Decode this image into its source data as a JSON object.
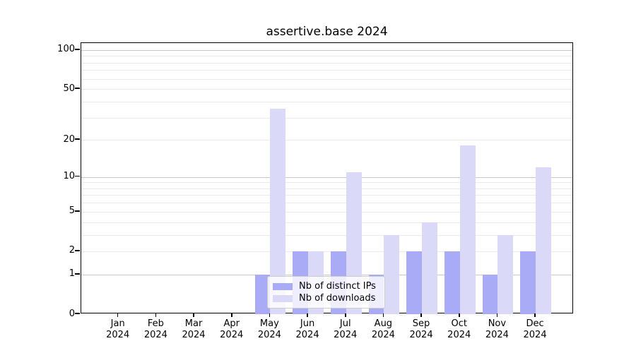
{
  "title": "assertive.base 2024",
  "chart_data": {
    "type": "bar",
    "title": "assertive.base 2024",
    "categories": [
      "Jan 2024",
      "Feb 2024",
      "Mar 2024",
      "Apr 2024",
      "May 2024",
      "Jun 2024",
      "Jul 2024",
      "Aug 2024",
      "Sep 2024",
      "Oct 2024",
      "Nov 2024",
      "Dec 2024"
    ],
    "series": [
      {
        "name": "Nb of distinct IPs",
        "color": "#aaabf7",
        "values": [
          0,
          0,
          0,
          0,
          1,
          2,
          2,
          1,
          2,
          2,
          1,
          2
        ]
      },
      {
        "name": "Nb of downloads",
        "color": "#dadaf8",
        "values": [
          0,
          0,
          0,
          0,
          35,
          2,
          11,
          3,
          4,
          18,
          3,
          12
        ]
      }
    ],
    "xlabel": "",
    "ylabel": "",
    "yscale": "log1p",
    "ylim": [
      0,
      113
    ],
    "yticks": [
      0,
      1,
      2,
      5,
      10,
      20,
      50,
      100
    ],
    "major_gridlines": [
      1,
      10,
      100
    ],
    "minor_gridlines": [
      2,
      3,
      4,
      5,
      6,
      7,
      8,
      9,
      20,
      30,
      40,
      50,
      60,
      70,
      80,
      90
    ],
    "grid": "horizontal",
    "legend_position": "inside-bottom-center",
    "colors": {
      "spine": "#000000",
      "major_grid": "#c8c8c8",
      "minor_grid": "#ebebeb",
      "background": "#ffffff"
    }
  }
}
